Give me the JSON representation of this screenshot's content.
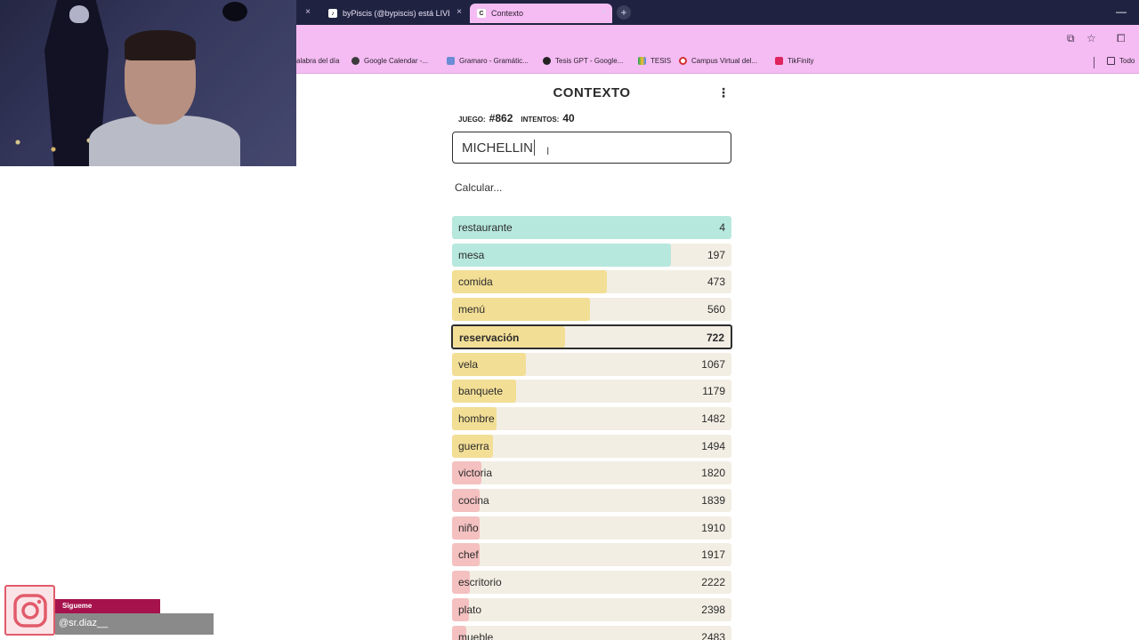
{
  "browser": {
    "tabs": [
      {
        "label": "",
        "active": false
      },
      {
        "label": "byPiscis (@bypiscis) está LIVE.",
        "active": false,
        "favicon": "tiktok-icon"
      },
      {
        "label": "Contexto",
        "active": true,
        "favicon": "contexto-favicon"
      }
    ],
    "bookmarks": [
      {
        "label": "alabra del día"
      },
      {
        "label": "Google Calendar -..."
      },
      {
        "label": "Gramaro - Gramátic..."
      },
      {
        "label": "Tesis GPT - Google..."
      },
      {
        "label": "TESIS"
      },
      {
        "label": "Campus Virtual del..."
      },
      {
        "label": "TikFinity"
      },
      {
        "label": "Todo"
      }
    ],
    "tab_close_glyph": "×",
    "new_tab_glyph": "+",
    "min_glyph": "—"
  },
  "game": {
    "title": "CONTEXTO",
    "menu_glyph": "⋮",
    "game_label": "JUEGO:",
    "game_number": "#862",
    "attempts_label": "INTENTOS:",
    "attempts_value": "40",
    "input_value": "MICHELLIN",
    "status": "Calcular...",
    "guesses": [
      {
        "word": "restaurante",
        "rank": "4",
        "fill": 1.0,
        "color": "#b7e8dd"
      },
      {
        "word": "mesa",
        "rank": "197",
        "fill": 0.785,
        "color": "#b7e8dd"
      },
      {
        "word": "comida",
        "rank": "473",
        "fill": 0.555,
        "color": "#f2de95"
      },
      {
        "word": "menú",
        "rank": "560",
        "fill": 0.495,
        "color": "#f2de95"
      },
      {
        "word": "reservación",
        "rank": "722",
        "fill": 0.4,
        "color": "#f2de95",
        "highlight": true
      },
      {
        "word": "vela",
        "rank": "1067",
        "fill": 0.265,
        "color": "#f2de95"
      },
      {
        "word": "banquete",
        "rank": "1179",
        "fill": 0.23,
        "color": "#f2de95"
      },
      {
        "word": "hombre",
        "rank": "1482",
        "fill": 0.16,
        "color": "#f2de95"
      },
      {
        "word": "guerra",
        "rank": "1494",
        "fill": 0.145,
        "color": "#f2de95"
      },
      {
        "word": "victoria",
        "rank": "1820",
        "fill": 0.105,
        "color": "#f4c0c0"
      },
      {
        "word": "cocina",
        "rank": "1839",
        "fill": 0.1,
        "color": "#f4c0c0"
      },
      {
        "word": "niño",
        "rank": "1910",
        "fill": 0.1,
        "color": "#f4c0c0"
      },
      {
        "word": "chef",
        "rank": "1917",
        "fill": 0.1,
        "color": "#f4c0c0"
      },
      {
        "word": "escritorio",
        "rank": "2222",
        "fill": 0.065,
        "color": "#f4c0c0"
      },
      {
        "word": "plato",
        "rank": "2398",
        "fill": 0.06,
        "color": "#f4c0c0"
      },
      {
        "word": "mueble",
        "rank": "2483",
        "fill": 0.05,
        "color": "#f4c0c0"
      }
    ]
  },
  "overlay": {
    "follow_label": "Sigueme",
    "handle": "@sr.diaz__"
  },
  "colors": {
    "tabstrip": "#1f2341",
    "chrome_pink": "#f4bcf2",
    "bar_bg": "#f2eee3",
    "close": "#b7e8dd",
    "medium": "#f2de95",
    "far": "#f4c0c0",
    "ig_follow": "#a5124c"
  }
}
